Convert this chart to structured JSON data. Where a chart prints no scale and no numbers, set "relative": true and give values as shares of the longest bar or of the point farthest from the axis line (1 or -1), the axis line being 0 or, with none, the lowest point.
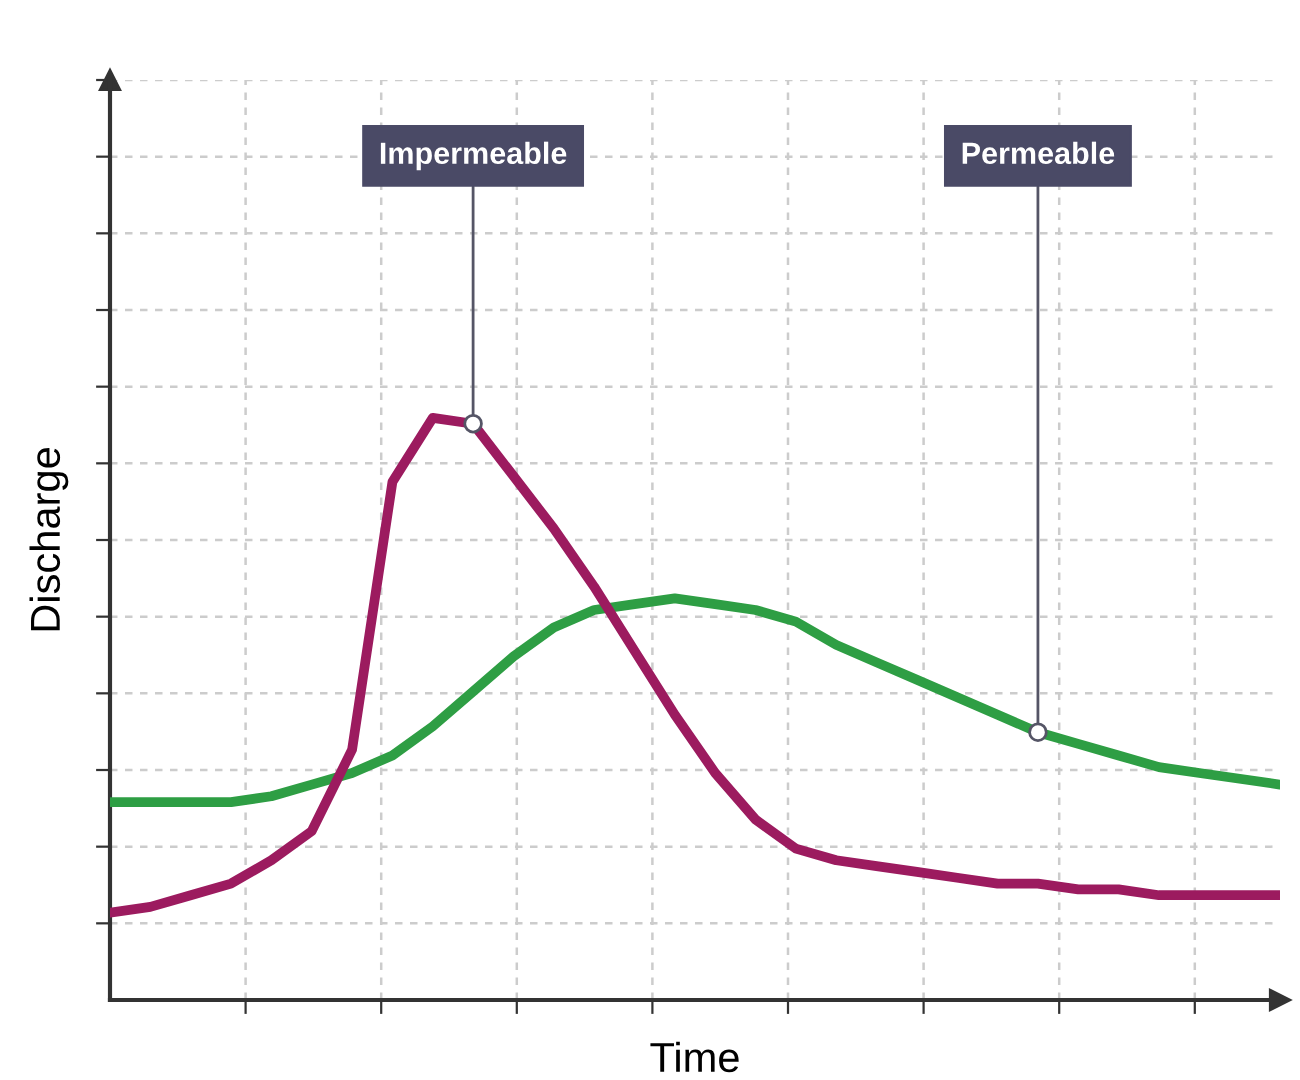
{
  "chart_data": {
    "type": "line",
    "relative": true,
    "xlabel": "Time",
    "ylabel": "Discharge",
    "grid": true,
    "marker": "none",
    "line_style": "solid",
    "categories": [
      null,
      null,
      null,
      null,
      null,
      null,
      null,
      null,
      null,
      null,
      null,
      null,
      null,
      null,
      null,
      null,
      null,
      null,
      null,
      null,
      null,
      null,
      null,
      null,
      null,
      null,
      null,
      null,
      null,
      null
    ],
    "series": [
      {
        "color": "#2e9e44",
        "values": [
          0.34,
          0.34,
          0.34,
          0.34,
          0.35,
          0.37,
          0.39,
          0.42,
          0.47,
          0.53,
          0.59,
          0.64,
          0.67,
          0.68,
          0.69,
          0.68,
          0.67,
          0.65,
          0.61,
          0.58,
          0.55,
          0.52,
          0.49,
          0.46,
          0.44,
          0.42,
          0.4,
          0.39,
          0.38,
          0.37
        ]
      },
      {
        "color": "#9c1b5f",
        "values": [
          0.15,
          0.16,
          0.18,
          0.2,
          0.24,
          0.29,
          0.43,
          0.89,
          1.0,
          0.99,
          0.9,
          0.81,
          0.71,
          0.6,
          0.49,
          0.39,
          0.31,
          0.26,
          0.24,
          0.23,
          0.22,
          0.21,
          0.2,
          0.2,
          0.19,
          0.19,
          0.18,
          0.18,
          0.18,
          0.18
        ]
      }
    ],
    "annotations": [
      {
        "text": "Impermeable",
        "y": 0.99
      },
      {
        "text": "Permeable",
        "y": 0.46
      }
    ]
  }
}
